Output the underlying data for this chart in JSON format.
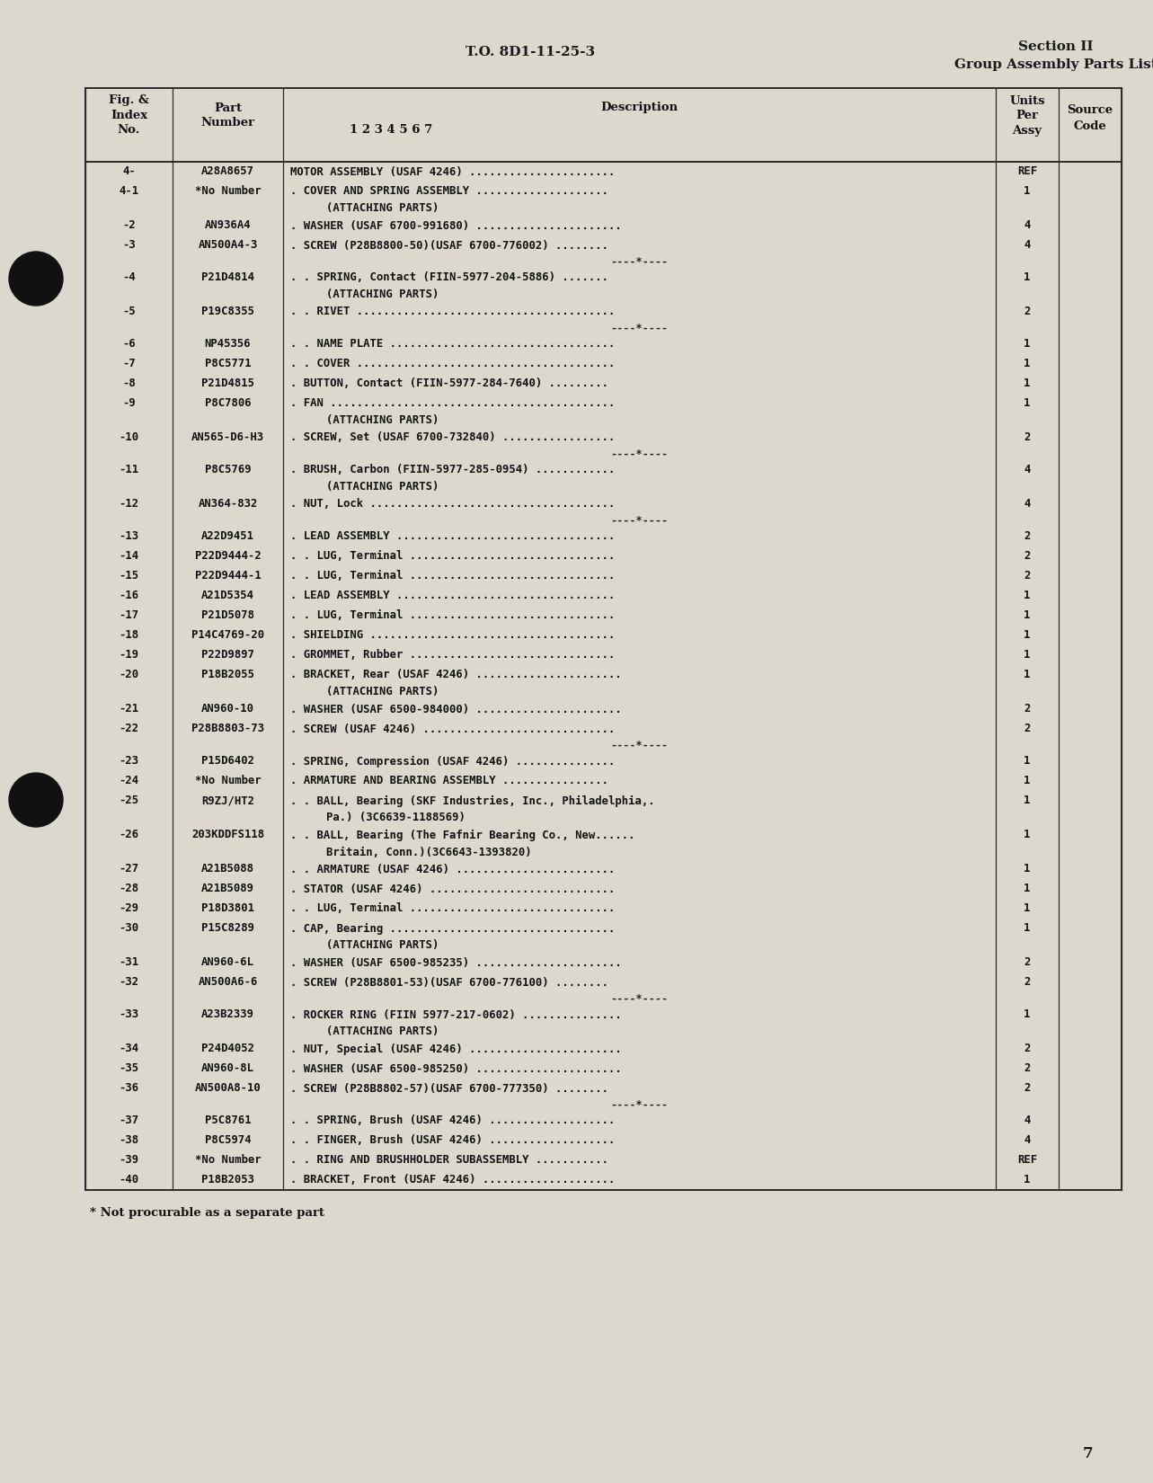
{
  "bg_color": "#ddd8ce",
  "header_center": "T.O. 8D1-11-25-3",
  "header_right_line1": "Section II",
  "header_right_line2": "Group Assembly Parts List",
  "page_number": "7",
  "footnote": "* Not procurable as a separate part",
  "rows": [
    {
      "fig": "4-",
      "part": "A28A8657",
      "desc": "MOTOR ASSEMBLY (USAF 4246) ......................",
      "units": "REF",
      "sep_before": false,
      "continuation": false
    },
    {
      "fig": "4-1",
      "part": "*No Number",
      "desc": ". COVER AND SPRING ASSEMBLY ....................",
      "units": "1",
      "sep_before": false,
      "continuation": false
    },
    {
      "fig": "",
      "part": "",
      "desc": "(ATTACHING PARTS)",
      "units": "",
      "sep_before": false,
      "continuation": true
    },
    {
      "fig": "-2",
      "part": "AN936A4",
      "desc": ". WASHER (USAF 6700-991680) ......................",
      "units": "4",
      "sep_before": false,
      "continuation": false
    },
    {
      "fig": "-3",
      "part": "AN500A4-3",
      "desc": ". SCREW (P28B8800-50)(USAF 6700-776002) ........",
      "units": "4",
      "sep_before": false,
      "continuation": false
    },
    {
      "fig": "SEP",
      "part": "",
      "desc": "",
      "units": "",
      "sep_before": false,
      "continuation": false
    },
    {
      "fig": "-4",
      "part": "P21D4814",
      "desc": ". . SPRING, Contact (FIIN-5977-204-5886) .......",
      "units": "1",
      "sep_before": false,
      "continuation": false
    },
    {
      "fig": "",
      "part": "",
      "desc": "(ATTACHING PARTS)",
      "units": "",
      "sep_before": false,
      "continuation": true
    },
    {
      "fig": "-5",
      "part": "P19C8355",
      "desc": ". . RIVET .......................................",
      "units": "2",
      "sep_before": false,
      "continuation": false
    },
    {
      "fig": "SEP",
      "part": "",
      "desc": "",
      "units": "",
      "sep_before": false,
      "continuation": false
    },
    {
      "fig": "-6",
      "part": "NP45356",
      "desc": ". . NAME PLATE ..................................",
      "units": "1",
      "sep_before": false,
      "continuation": false
    },
    {
      "fig": "-7",
      "part": "P8C5771",
      "desc": ". . COVER .......................................",
      "units": "1",
      "sep_before": false,
      "continuation": false
    },
    {
      "fig": "-8",
      "part": "P21D4815",
      "desc": ". BUTTON, Contact (FIIN-5977-284-7640) .........",
      "units": "1",
      "sep_before": false,
      "continuation": false
    },
    {
      "fig": "-9",
      "part": "P8C7806",
      "desc": ". FAN ...........................................",
      "units": "1",
      "sep_before": false,
      "continuation": false
    },
    {
      "fig": "",
      "part": "",
      "desc": "(ATTACHING PARTS)",
      "units": "",
      "sep_before": false,
      "continuation": true
    },
    {
      "fig": "-10",
      "part": "AN565-D6-H3",
      "desc": ". SCREW, Set (USAF 6700-732840) .................",
      "units": "2",
      "sep_before": false,
      "continuation": false
    },
    {
      "fig": "SEP",
      "part": "",
      "desc": "",
      "units": "",
      "sep_before": false,
      "continuation": false
    },
    {
      "fig": "-11",
      "part": "P8C5769",
      "desc": ". BRUSH, Carbon (FIIN-5977-285-0954) ............",
      "units": "4",
      "sep_before": false,
      "continuation": false
    },
    {
      "fig": "",
      "part": "",
      "desc": "(ATTACHING PARTS)",
      "units": "",
      "sep_before": false,
      "continuation": true
    },
    {
      "fig": "-12",
      "part": "AN364-832",
      "desc": ". NUT, Lock .....................................",
      "units": "4",
      "sep_before": false,
      "continuation": false
    },
    {
      "fig": "SEP",
      "part": "",
      "desc": "",
      "units": "",
      "sep_before": false,
      "continuation": false
    },
    {
      "fig": "-13",
      "part": "A22D9451",
      "desc": ". LEAD ASSEMBLY .................................",
      "units": "2",
      "sep_before": false,
      "continuation": false
    },
    {
      "fig": "-14",
      "part": "P22D9444-2",
      "desc": ". . LUG, Terminal ...............................",
      "units": "2",
      "sep_before": false,
      "continuation": false
    },
    {
      "fig": "-15",
      "part": "P22D9444-1",
      "desc": ". . LUG, Terminal ...............................",
      "units": "2",
      "sep_before": false,
      "continuation": false
    },
    {
      "fig": "-16",
      "part": "A21D5354",
      "desc": ". LEAD ASSEMBLY .................................",
      "units": "1",
      "sep_before": false,
      "continuation": false
    },
    {
      "fig": "-17",
      "part": "P21D5078",
      "desc": ". . LUG, Terminal ...............................",
      "units": "1",
      "sep_before": false,
      "continuation": false
    },
    {
      "fig": "-18",
      "part": "P14C4769-20",
      "desc": ". SHIELDING .....................................",
      "units": "1",
      "sep_before": false,
      "continuation": false
    },
    {
      "fig": "-19",
      "part": "P22D9897",
      "desc": ". GROMMET, Rubber ...............................",
      "units": "1",
      "sep_before": false,
      "continuation": false
    },
    {
      "fig": "-20",
      "part": "P18B2055",
      "desc": ". BRACKET, Rear (USAF 4246) ......................",
      "units": "1",
      "sep_before": false,
      "continuation": false
    },
    {
      "fig": "",
      "part": "",
      "desc": "(ATTACHING PARTS)",
      "units": "",
      "sep_before": false,
      "continuation": true
    },
    {
      "fig": "-21",
      "part": "AN960-10",
      "desc": ". WASHER (USAF 6500-984000) ......................",
      "units": "2",
      "sep_before": false,
      "continuation": false
    },
    {
      "fig": "-22",
      "part": "P28B8803-73",
      "desc": ". SCREW (USAF 4246) .............................",
      "units": "2",
      "sep_before": false,
      "continuation": false
    },
    {
      "fig": "SEP",
      "part": "",
      "desc": "",
      "units": "",
      "sep_before": false,
      "continuation": false
    },
    {
      "fig": "-23",
      "part": "P15D6402",
      "desc": ". SPRING, Compression (USAF 4246) ...............",
      "units": "1",
      "sep_before": false,
      "continuation": false
    },
    {
      "fig": "-24",
      "part": "*No Number",
      "desc": ". ARMATURE AND BEARING ASSEMBLY ................",
      "units": "1",
      "sep_before": false,
      "continuation": false
    },
    {
      "fig": "-25",
      "part": "R9ZJ/HT2",
      "desc": ". . BALL, Bearing (SKF Industries, Inc., Philadelphia,.",
      "units": "1",
      "sep_before": false,
      "continuation": false
    },
    {
      "fig": "",
      "part": "",
      "desc": "Pa.) (3C6639-1188569)",
      "units": "",
      "sep_before": false,
      "continuation": true
    },
    {
      "fig": "-26",
      "part": "203KDDFS118",
      "desc": ". . BALL, Bearing (The Fafnir Bearing Co., New......",
      "units": "1",
      "sep_before": false,
      "continuation": false
    },
    {
      "fig": "",
      "part": "",
      "desc": "Britain, Conn.)(3C6643-1393820)",
      "units": "",
      "sep_before": false,
      "continuation": true
    },
    {
      "fig": "-27",
      "part": "A21B5088",
      "desc": ". . ARMATURE (USAF 4246) ........................",
      "units": "1",
      "sep_before": false,
      "continuation": false
    },
    {
      "fig": "-28",
      "part": "A21B5089",
      "desc": ". STATOR (USAF 4246) ............................",
      "units": "1",
      "sep_before": false,
      "continuation": false
    },
    {
      "fig": "-29",
      "part": "P18D3801",
      "desc": ". . LUG, Terminal ...............................",
      "units": "1",
      "sep_before": false,
      "continuation": false
    },
    {
      "fig": "-30",
      "part": "P15C8289",
      "desc": ". CAP, Bearing ..................................",
      "units": "1",
      "sep_before": false,
      "continuation": false
    },
    {
      "fig": "",
      "part": "",
      "desc": "(ATTACHING PARTS)",
      "units": "",
      "sep_before": false,
      "continuation": true
    },
    {
      "fig": "-31",
      "part": "AN960-6L",
      "desc": ". WASHER (USAF 6500-985235) ......................",
      "units": "2",
      "sep_before": false,
      "continuation": false
    },
    {
      "fig": "-32",
      "part": "AN500A6-6",
      "desc": ". SCREW (P28B8801-53)(USAF 6700-776100) ........",
      "units": "2",
      "sep_before": false,
      "continuation": false
    },
    {
      "fig": "SEP",
      "part": "",
      "desc": "",
      "units": "",
      "sep_before": false,
      "continuation": false
    },
    {
      "fig": "-33",
      "part": "A23B2339",
      "desc": ". ROCKER RING (FIIN 5977-217-0602) ...............",
      "units": "1",
      "sep_before": false,
      "continuation": false
    },
    {
      "fig": "",
      "part": "",
      "desc": "(ATTACHING PARTS)",
      "units": "",
      "sep_before": false,
      "continuation": true
    },
    {
      "fig": "-34",
      "part": "P24D4052",
      "desc": ". NUT, Special (USAF 4246) .......................",
      "units": "2",
      "sep_before": false,
      "continuation": false
    },
    {
      "fig": "-35",
      "part": "AN960-8L",
      "desc": ". WASHER (USAF 6500-985250) ......................",
      "units": "2",
      "sep_before": false,
      "continuation": false
    },
    {
      "fig": "-36",
      "part": "AN500A8-10",
      "desc": ". SCREW (P28B8802-57)(USAF 6700-777350) ........",
      "units": "2",
      "sep_before": false,
      "continuation": false
    },
    {
      "fig": "SEP",
      "part": "",
      "desc": "",
      "units": "",
      "sep_before": false,
      "continuation": false
    },
    {
      "fig": "-37",
      "part": "P5C8761",
      "desc": ". . SPRING, Brush (USAF 4246) ...................",
      "units": "4",
      "sep_before": false,
      "continuation": false
    },
    {
      "fig": "-38",
      "part": "P8C5974",
      "desc": ". . FINGER, Brush (USAF 4246) ...................",
      "units": "4",
      "sep_before": false,
      "continuation": false
    },
    {
      "fig": "-39",
      "part": "*No Number",
      "desc": ". . RING AND BRUSHHOLDER SUBASSEMBLY ...........",
      "units": "REF",
      "sep_before": false,
      "continuation": false
    },
    {
      "fig": "-40",
      "part": "P18B2053",
      "desc": ". BRACKET, Front (USAF 4246) ....................",
      "units": "1",
      "sep_before": false,
      "continuation": false
    }
  ]
}
